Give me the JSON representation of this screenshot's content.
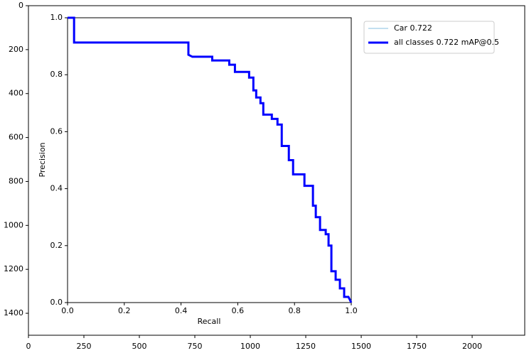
{
  "chart_data": [
    {
      "type": "image",
      "xlim": [
        0,
        2237
      ],
      "xticks": [
        0,
        250,
        500,
        750,
        1000,
        1250,
        1500,
        1750,
        2000
      ],
      "ylim": [
        1500,
        0
      ],
      "yticks": [
        0,
        200,
        400,
        600,
        800,
        1000,
        1200,
        1400
      ]
    },
    {
      "type": "line",
      "xlabel": "Recall",
      "ylabel": "Precision",
      "xlim": [
        0,
        1
      ],
      "ylim": [
        0,
        1
      ],
      "xticks": [
        {
          "value": 0,
          "label": "0.0"
        },
        0.2,
        0.4,
        0.6,
        0.8,
        {
          "value": 1,
          "label": "1.0"
        }
      ],
      "yticks": [
        {
          "value": 0,
          "label": "0.0"
        },
        0.2,
        0.4,
        0.6,
        0.8,
        {
          "value": 1,
          "label": "1.0"
        }
      ],
      "legend": "outside upper right",
      "x": [
        0,
        0.023,
        0.023,
        0.426,
        0.426,
        0.44,
        0.51,
        0.51,
        0.57,
        0.57,
        0.59,
        0.59,
        0.64,
        0.64,
        0.655,
        0.655,
        0.665,
        0.665,
        0.68,
        0.68,
        0.69,
        0.69,
        0.72,
        0.72,
        0.74,
        0.74,
        0.755,
        0.755,
        0.78,
        0.78,
        0.795,
        0.795,
        0.835,
        0.835,
        0.865,
        0.865,
        0.875,
        0.875,
        0.89,
        0.89,
        0.91,
        0.91,
        0.92,
        0.92,
        0.93,
        0.93,
        0.945,
        0.945,
        0.96,
        0.96,
        0.975,
        0.975,
        0.99,
        1
      ],
      "series": [
        {
          "name": "Car 0.722",
          "color": "#87bfe0",
          "width": 1,
          "values": [
            1,
            1,
            0.913,
            0.913,
            0.87,
            0.863,
            0.863,
            0.85,
            0.85,
            0.835,
            0.835,
            0.81,
            0.81,
            0.79,
            0.79,
            0.745,
            0.745,
            0.72,
            0.72,
            0.7,
            0.7,
            0.66,
            0.66,
            0.645,
            0.645,
            0.625,
            0.625,
            0.55,
            0.55,
            0.5,
            0.5,
            0.45,
            0.45,
            0.41,
            0.41,
            0.34,
            0.34,
            0.3,
            0.3,
            0.255,
            0.255,
            0.24,
            0.24,
            0.2,
            0.2,
            0.11,
            0.11,
            0.08,
            0.08,
            0.05,
            0.05,
            0.02,
            0.02,
            0
          ]
        },
        {
          "name": "all classes 0.722 mAP@0.5",
          "color": "#0000ff",
          "width": 3,
          "values": [
            1,
            1,
            0.913,
            0.913,
            0.87,
            0.863,
            0.863,
            0.85,
            0.85,
            0.835,
            0.835,
            0.81,
            0.81,
            0.79,
            0.79,
            0.745,
            0.745,
            0.72,
            0.72,
            0.7,
            0.7,
            0.66,
            0.66,
            0.645,
            0.645,
            0.625,
            0.625,
            0.55,
            0.55,
            0.5,
            0.5,
            0.45,
            0.45,
            0.41,
            0.41,
            0.34,
            0.34,
            0.3,
            0.3,
            0.255,
            0.255,
            0.24,
            0.24,
            0.2,
            0.2,
            0.11,
            0.11,
            0.08,
            0.08,
            0.05,
            0.05,
            0.02,
            0.02,
            0
          ]
        }
      ]
    }
  ]
}
